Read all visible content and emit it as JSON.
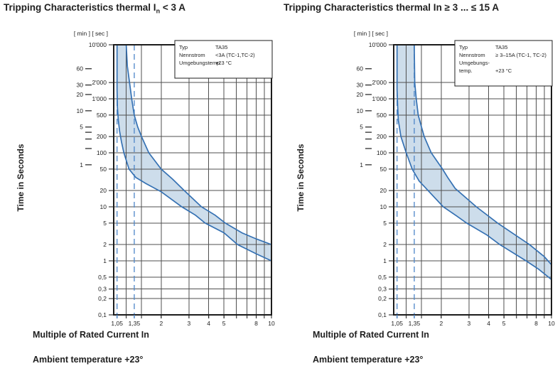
{
  "colors": {
    "band_fill": "#cdddeb",
    "curve": "#3571b3",
    "dashed": "#4d86c8",
    "grid": "#4f4f4f",
    "axis": "#1c1c1c",
    "text": "#1f1f1f"
  },
  "chart_data": [
    {
      "type": "area",
      "title": "Tripping Characteristics thermal In < 3 A",
      "title_parts": {
        "prefix": "Tripping Characteristics thermal I",
        "sub": "n",
        "suffix": " < 3 A"
      },
      "xlabel": "Multiple of Rated Current In",
      "ylabel": "Time in Seconds",
      "unit_header": "[ min ] [ sec ]",
      "footnote": "Ambient temperature +23°",
      "x_axis": {
        "scale": "log",
        "min": 1,
        "max": 10,
        "gridlines": [
          1.2,
          1.5,
          2,
          3,
          4,
          5,
          6,
          7,
          8,
          9,
          10
        ],
        "dashed_lines": [
          1.05,
          1.35
        ],
        "tick_labels": [
          {
            "v": 1.05,
            "t": "1,05",
            "accent": true
          },
          {
            "v": 1.35,
            "t": "1,35",
            "accent": true
          },
          {
            "v": 2,
            "t": "2"
          },
          {
            "v": 3,
            "t": "3"
          },
          {
            "v": 4,
            "t": "4"
          },
          {
            "v": 5,
            "t": "5"
          },
          {
            "v": 8,
            "t": "8"
          },
          {
            "v": 10,
            "t": "10"
          }
        ]
      },
      "y_axis_sec": {
        "scale": "log",
        "min": 0.1,
        "max": 10000,
        "ticks": [
          {
            "v": 10000,
            "t": "10'000"
          },
          {
            "v": 2000,
            "t": "2'000"
          },
          {
            "v": 1000,
            "t": "1'000"
          },
          {
            "v": 500,
            "t": "500"
          },
          {
            "v": 200,
            "t": "200"
          },
          {
            "v": 100,
            "t": "100"
          },
          {
            "v": 50,
            "t": "50"
          },
          {
            "v": 20,
            "t": "20"
          },
          {
            "v": 10,
            "t": "10"
          },
          {
            "v": 5,
            "t": "5"
          },
          {
            "v": 2,
            "t": "2"
          },
          {
            "v": 1,
            "t": "1"
          },
          {
            "v": 0.5,
            "t": "0,5"
          },
          {
            "v": 0.3,
            "t": "0,3"
          },
          {
            "v": 0.2,
            "t": "0,2"
          },
          {
            "v": 0.1,
            "t": "0,1"
          }
        ]
      },
      "y_axis_min": {
        "ticks": [
          {
            "v": 60,
            "t": "60"
          },
          {
            "v": 30,
            "t": "30"
          },
          {
            "v": 20,
            "t": "20"
          },
          {
            "v": 10,
            "t": "10"
          },
          {
            "v": 5,
            "t": "5"
          },
          {
            "v": 4,
            "t": ""
          },
          {
            "v": 3,
            "t": ""
          },
          {
            "v": 2,
            "t": ""
          },
          {
            "v": 1,
            "t": "1"
          }
        ]
      },
      "legend": [
        {
          "label": "Typ",
          "value": "TA35"
        },
        {
          "label": "Nennstrom",
          "value": "<3A (TC-1,TC-2)"
        },
        {
          "label": "Umgebungstemp.",
          "value": "+23 °C"
        }
      ],
      "series": [
        {
          "name": "lower tripping limit",
          "points": [
            [
              1.05,
              10000
            ],
            [
              1.05,
              1500
            ],
            [
              1.055,
              700
            ],
            [
              1.07,
              400
            ],
            [
              1.09,
              250
            ],
            [
              1.12,
              160
            ],
            [
              1.16,
              100
            ],
            [
              1.25,
              50
            ],
            [
              1.38,
              35
            ],
            [
              1.6,
              27
            ],
            [
              2,
              19
            ],
            [
              2.7,
              10
            ],
            [
              3.3,
              7
            ],
            [
              3.8,
              5
            ],
            [
              5,
              3.3
            ],
            [
              6.1,
              2
            ],
            [
              8,
              1.35
            ],
            [
              10,
              1
            ]
          ]
        },
        {
          "name": "upper tripping limit",
          "points": [
            [
              1.2,
              10000
            ],
            [
              1.22,
              4000
            ],
            [
              1.26,
              2000
            ],
            [
              1.3,
              1000
            ],
            [
              1.35,
              500
            ],
            [
              1.42,
              300
            ],
            [
              1.5,
              200
            ],
            [
              1.67,
              100
            ],
            [
              2,
              50
            ],
            [
              2.35,
              33
            ],
            [
              2.8,
              20
            ],
            [
              3.6,
              10
            ],
            [
              4.4,
              7
            ],
            [
              5.1,
              5
            ],
            [
              6.5,
              3.3
            ],
            [
              8,
              2.55
            ],
            [
              10,
              2
            ]
          ]
        }
      ]
    },
    {
      "type": "area",
      "title": "Tripping Characteristics thermal In ≥ 3 ... ≤ 15 A",
      "title_parts": {
        "prefix": "Tripping Characteristics thermal In ≥ 3 ... ≤ 15 A",
        "sub": "",
        "suffix": ""
      },
      "xlabel": "Multiple of Rated Current In",
      "ylabel": "Time in Seconds",
      "unit_header": "[ min ] [ sec ]",
      "footnote": "Ambient temperature +23°",
      "x_axis": {
        "scale": "log",
        "min": 1,
        "max": 10,
        "gridlines": [
          1.2,
          1.5,
          2,
          3,
          4,
          5,
          6,
          7,
          8,
          9,
          10
        ],
        "dashed_lines": [
          1.05,
          1.35
        ],
        "tick_labels": [
          {
            "v": 1.05,
            "t": "1,05",
            "accent": true
          },
          {
            "v": 1.35,
            "t": "1,35",
            "accent": true
          },
          {
            "v": 2,
            "t": "2"
          },
          {
            "v": 3,
            "t": "3"
          },
          {
            "v": 4,
            "t": "4"
          },
          {
            "v": 5,
            "t": "5"
          },
          {
            "v": 8,
            "t": "8"
          },
          {
            "v": 10,
            "t": "10"
          }
        ]
      },
      "y_axis_sec": {
        "scale": "log",
        "min": 0.1,
        "max": 10000,
        "ticks": [
          {
            "v": 10000,
            "t": "10'000"
          },
          {
            "v": 2000,
            "t": "2'000"
          },
          {
            "v": 1000,
            "t": "1'000"
          },
          {
            "v": 500,
            "t": "500"
          },
          {
            "v": 200,
            "t": "200"
          },
          {
            "v": 100,
            "t": "100"
          },
          {
            "v": 50,
            "t": "50"
          },
          {
            "v": 20,
            "t": "20"
          },
          {
            "v": 10,
            "t": "10"
          },
          {
            "v": 5,
            "t": "5"
          },
          {
            "v": 2,
            "t": "2"
          },
          {
            "v": 1,
            "t": "1"
          },
          {
            "v": 0.5,
            "t": "0,5"
          },
          {
            "v": 0.3,
            "t": "0,3"
          },
          {
            "v": 0.2,
            "t": "0,2"
          },
          {
            "v": 0.1,
            "t": "0,1"
          }
        ]
      },
      "y_axis_min": {
        "ticks": [
          {
            "v": 60,
            "t": "60"
          },
          {
            "v": 30,
            "t": "30"
          },
          {
            "v": 20,
            "t": "20"
          },
          {
            "v": 10,
            "t": "10"
          },
          {
            "v": 5,
            "t": "5"
          },
          {
            "v": 4,
            "t": ""
          },
          {
            "v": 3,
            "t": ""
          },
          {
            "v": 2,
            "t": ""
          },
          {
            "v": 1,
            "t": "1"
          }
        ]
      },
      "legend": [
        {
          "label": "Typ",
          "value": "TA35"
        },
        {
          "label": "Nennstrom",
          "value": "≥ 3–15A (TC-1, TC-2)"
        },
        {
          "label": "Umgebungs-",
          "value": ""
        },
        {
          "label": "temp.",
          "value": "+23 °C"
        }
      ],
      "series": [
        {
          "name": "lower tripping limit",
          "points": [
            [
              1.05,
              10000
            ],
            [
              1.05,
              1500
            ],
            [
              1.06,
              700
            ],
            [
              1.07,
              400
            ],
            [
              1.11,
              200
            ],
            [
              1.2,
              100
            ],
            [
              1.31,
              50
            ],
            [
              1.45,
              30
            ],
            [
              1.65,
              20
            ],
            [
              2.06,
              10
            ],
            [
              2.5,
              6.8
            ],
            [
              2.9,
              5
            ],
            [
              3.9,
              3
            ],
            [
              4.7,
              2
            ],
            [
              6.9,
              1
            ],
            [
              8.3,
              0.7
            ],
            [
              10,
              0.45
            ]
          ]
        },
        {
          "name": "upper tripping limit",
          "points": [
            [
              1.35,
              10000
            ],
            [
              1.36,
              2000
            ],
            [
              1.39,
              1000
            ],
            [
              1.43,
              500
            ],
            [
              1.5,
              300
            ],
            [
              1.56,
              200
            ],
            [
              1.73,
              100
            ],
            [
              2.04,
              50
            ],
            [
              2.2,
              35
            ],
            [
              2.45,
              22
            ],
            [
              3.34,
              10
            ],
            [
              4.56,
              5
            ],
            [
              5.9,
              3
            ],
            [
              7.25,
              2
            ],
            [
              9.0,
              1.2
            ],
            [
              10,
              0.85
            ]
          ]
        }
      ]
    }
  ]
}
